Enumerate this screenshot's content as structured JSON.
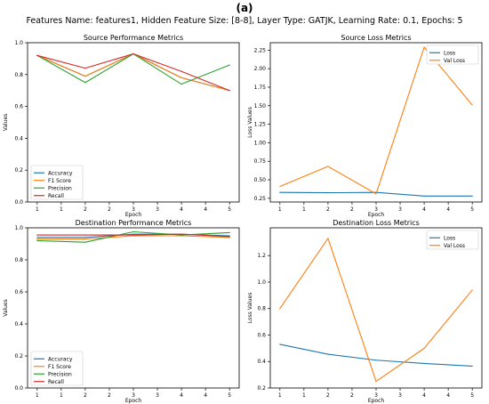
{
  "panel_label": "(a)",
  "suptitle": "Features Name: features1, Hidden Feature Size: [8-8], Layer Type: GATJK, Learning Rate: 0.1, Epochs: 5",
  "colors": {
    "blue": "#1f77b4",
    "orange": "#ff7f0e",
    "green": "#2ca02c",
    "red": "#d62728"
  },
  "chart_data": [
    {
      "type": "line",
      "title": "Source Performance Metrics",
      "xlabel": "Epoch",
      "ylabel": "Values",
      "x": [
        1,
        2,
        3,
        4,
        5
      ],
      "x_ticks": [
        1,
        1.5,
        2,
        2.5,
        3,
        3.5,
        4,
        4.5,
        5
      ],
      "x_tick_labels": [
        "1",
        "1",
        "2",
        "2",
        "3",
        "3",
        "4",
        "4",
        "5"
      ],
      "xlim": [
        0.8,
        5.2
      ],
      "ylim": [
        0.0,
        1.0
      ],
      "y_ticks": [
        0.0,
        0.2,
        0.4,
        0.6,
        0.8,
        1.0
      ],
      "y_tick_labels": [
        "0.0",
        "0.2",
        "0.4",
        "0.6",
        "0.8",
        "1.0"
      ],
      "legend_position": "lower-left",
      "grid": false,
      "series": [
        {
          "name": "Accuracy",
          "color": "#1f77b4",
          "values": [
            0.92,
            0.79,
            0.93,
            0.78,
            0.7
          ]
        },
        {
          "name": "F1 Score",
          "color": "#ff7f0e",
          "values": [
            0.92,
            0.79,
            0.93,
            0.78,
            0.7
          ]
        },
        {
          "name": "Precision",
          "color": "#2ca02c",
          "values": [
            0.92,
            0.75,
            0.93,
            0.74,
            0.86
          ]
        },
        {
          "name": "Recall",
          "color": "#d62728",
          "values": [
            0.92,
            0.84,
            0.93,
            0.82,
            0.7
          ]
        }
      ]
    },
    {
      "type": "line",
      "title": "Source Loss Metrics",
      "xlabel": "Epoch",
      "ylabel": "Loss Values",
      "x": [
        1,
        2,
        3,
        4,
        5
      ],
      "x_ticks": [
        1,
        1.5,
        2,
        2.5,
        3,
        3.5,
        4,
        4.5,
        5
      ],
      "x_tick_labels": [
        "1",
        "1",
        "2",
        "2",
        "3",
        "3",
        "4",
        "4",
        "5"
      ],
      "xlim": [
        0.8,
        5.2
      ],
      "ylim": [
        0.2,
        2.35
      ],
      "y_ticks": [
        0.25,
        0.5,
        0.75,
        1.0,
        1.25,
        1.5,
        1.75,
        2.0,
        2.25
      ],
      "y_tick_labels": [
        "0.25",
        "0.50",
        "0.75",
        "1.00",
        "1.25",
        "1.50",
        "1.75",
        "2.00",
        "2.25"
      ],
      "legend_position": "upper-right",
      "grid": false,
      "series": [
        {
          "name": "Loss",
          "color": "#1f77b4",
          "values": [
            0.33,
            0.325,
            0.33,
            0.28,
            0.28
          ]
        },
        {
          "name": "Val Loss",
          "color": "#ff7f0e",
          "values": [
            0.41,
            0.68,
            0.31,
            2.29,
            1.51
          ]
        }
      ]
    },
    {
      "type": "line",
      "title": "Destination Performance Metrics",
      "xlabel": "Epoch",
      "ylabel": "Values",
      "x": [
        1,
        2,
        3,
        4,
        5
      ],
      "x_ticks": [
        1,
        1.5,
        2,
        2.5,
        3,
        3.5,
        4,
        4.5,
        5
      ],
      "x_tick_labels": [
        "1",
        "1",
        "2",
        "2",
        "3",
        "3",
        "4",
        "4",
        "5"
      ],
      "xlim": [
        0.8,
        5.2
      ],
      "ylim": [
        0.0,
        1.0
      ],
      "y_ticks": [
        0.0,
        0.2,
        0.4,
        0.6,
        0.8,
        1.0
      ],
      "y_tick_labels": [
        "0.0",
        "0.2",
        "0.4",
        "0.6",
        "0.8",
        "1.0"
      ],
      "legend_position": "lower-left",
      "grid": false,
      "series": [
        {
          "name": "Accuracy",
          "color": "#1f77b4",
          "values": [
            0.94,
            0.94,
            0.96,
            0.96,
            0.95
          ]
        },
        {
          "name": "F1 Score",
          "color": "#ff7f0e",
          "values": [
            0.93,
            0.93,
            0.95,
            0.95,
            0.94
          ]
        },
        {
          "name": "Precision",
          "color": "#2ca02c",
          "values": [
            0.92,
            0.91,
            0.975,
            0.955,
            0.97
          ]
        },
        {
          "name": "Recall",
          "color": "#d62728",
          "values": [
            0.955,
            0.955,
            0.955,
            0.96,
            0.945
          ]
        }
      ]
    },
    {
      "type": "line",
      "title": "Destination Loss Metrics",
      "xlabel": "Epoch",
      "ylabel": "Loss Values",
      "x": [
        1,
        2,
        3,
        4,
        5
      ],
      "x_ticks": [
        1,
        1.5,
        2,
        2.5,
        3,
        3.5,
        4,
        4.5,
        5
      ],
      "x_tick_labels": [
        "1",
        "1",
        "2",
        "2",
        "3",
        "3",
        "4",
        "4",
        "5"
      ],
      "xlim": [
        0.8,
        5.2
      ],
      "ylim": [
        0.2,
        1.41
      ],
      "y_ticks": [
        0.2,
        0.4,
        0.6,
        0.8,
        1.0,
        1.2
      ],
      "y_tick_labels": [
        "0.2",
        "0.4",
        "0.6",
        "0.8",
        "1.0",
        "1.2"
      ],
      "legend_position": "upper-right",
      "grid": false,
      "series": [
        {
          "name": "Loss",
          "color": "#1f77b4",
          "values": [
            0.53,
            0.455,
            0.41,
            0.385,
            0.365
          ]
        },
        {
          "name": "Val Loss",
          "color": "#ff7f0e",
          "values": [
            0.8,
            1.33,
            0.25,
            0.5,
            0.94
          ]
        }
      ]
    }
  ]
}
